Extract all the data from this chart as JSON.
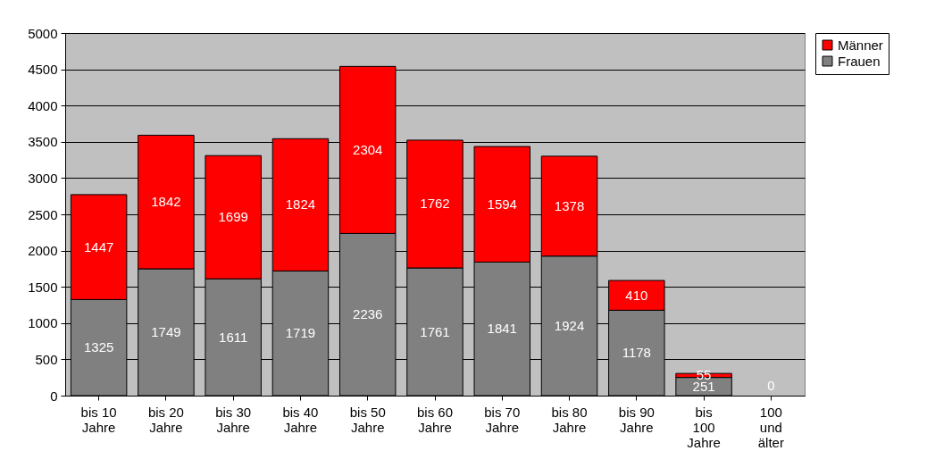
{
  "chart_data": {
    "type": "bar",
    "stacked": true,
    "categories": [
      "bis 10 Jahre",
      "bis 20 Jahre",
      "bis 30 Jahre",
      "bis 40 Jahre",
      "bis 50 Jahre",
      "bis 60 Jahre",
      "bis 70 Jahre",
      "bis 80 Jahre",
      "bis 90 Jahre",
      "bis 100 Jahre",
      "100 und älter"
    ],
    "series": [
      {
        "name": "Frauen",
        "color": "#808080",
        "values": [
          1325,
          1749,
          1611,
          1719,
          2236,
          1761,
          1841,
          1924,
          1178,
          251,
          0
        ],
        "value_labels": [
          "1325",
          "1749",
          "1611",
          "1719",
          "2236",
          "1761",
          "1841",
          "1924",
          "1178",
          "251",
          "0"
        ]
      },
      {
        "name": "Männer",
        "color": "#ff0000",
        "values": [
          1447,
          1842,
          1699,
          1824,
          2304,
          1762,
          1594,
          1378,
          410,
          55,
          0
        ],
        "value_labels": [
          "1447",
          "1842",
          "1699",
          "1824",
          "2304",
          "1762",
          "1594",
          "1378",
          "410",
          "55",
          null
        ]
      }
    ],
    "ylim": [
      0,
      5000
    ],
    "yticks": [
      0,
      500,
      1000,
      1500,
      2000,
      2500,
      3000,
      3500,
      4000,
      4500,
      5000
    ],
    "grid": "y",
    "legend": "right"
  }
}
